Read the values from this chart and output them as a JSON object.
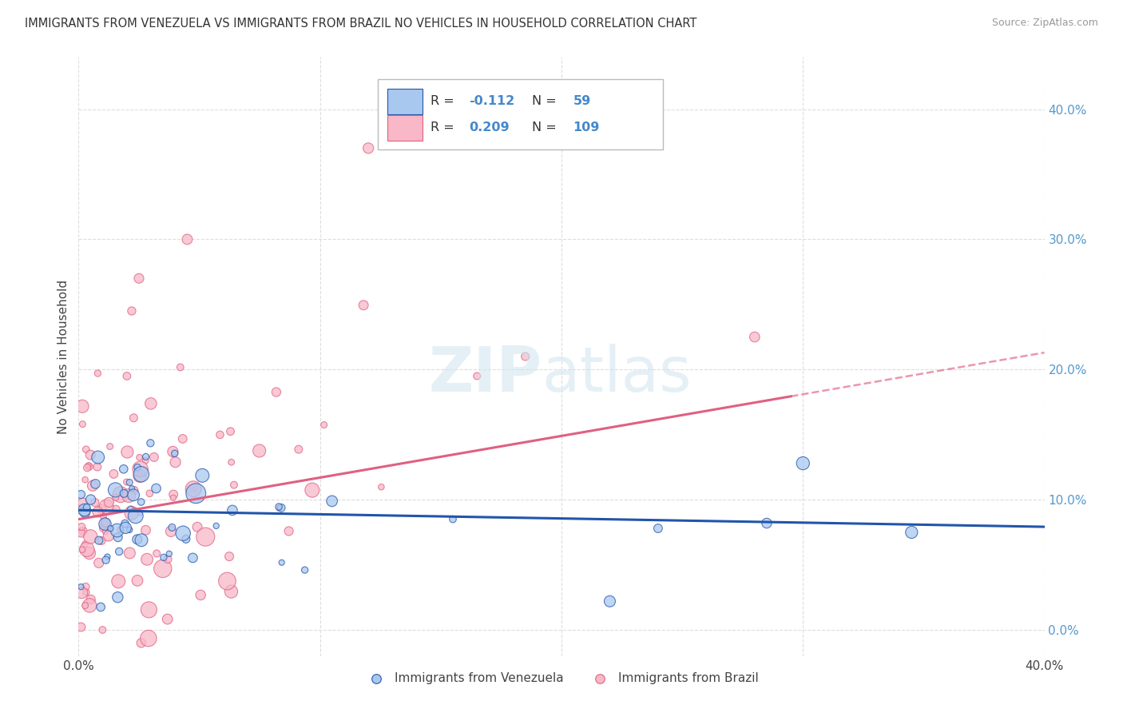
{
  "title": "IMMIGRANTS FROM VENEZUELA VS IMMIGRANTS FROM BRAZIL NO VEHICLES IN HOUSEHOLD CORRELATION CHART",
  "source": "Source: ZipAtlas.com",
  "ylabel": "No Vehicles in Household",
  "xlim": [
    0.0,
    0.4
  ],
  "ylim": [
    -0.02,
    0.44
  ],
  "grid_color": "#dddddd",
  "background_color": "#ffffff",
  "venezuela_R": -0.112,
  "venezuela_N": 59,
  "brazil_R": 0.209,
  "brazil_N": 109,
  "venezuela_color": "#a8c8f0",
  "brazil_color": "#f8b8c8",
  "venezuela_line_color": "#2255aa",
  "brazil_line_color": "#e06080",
  "seed": 7
}
